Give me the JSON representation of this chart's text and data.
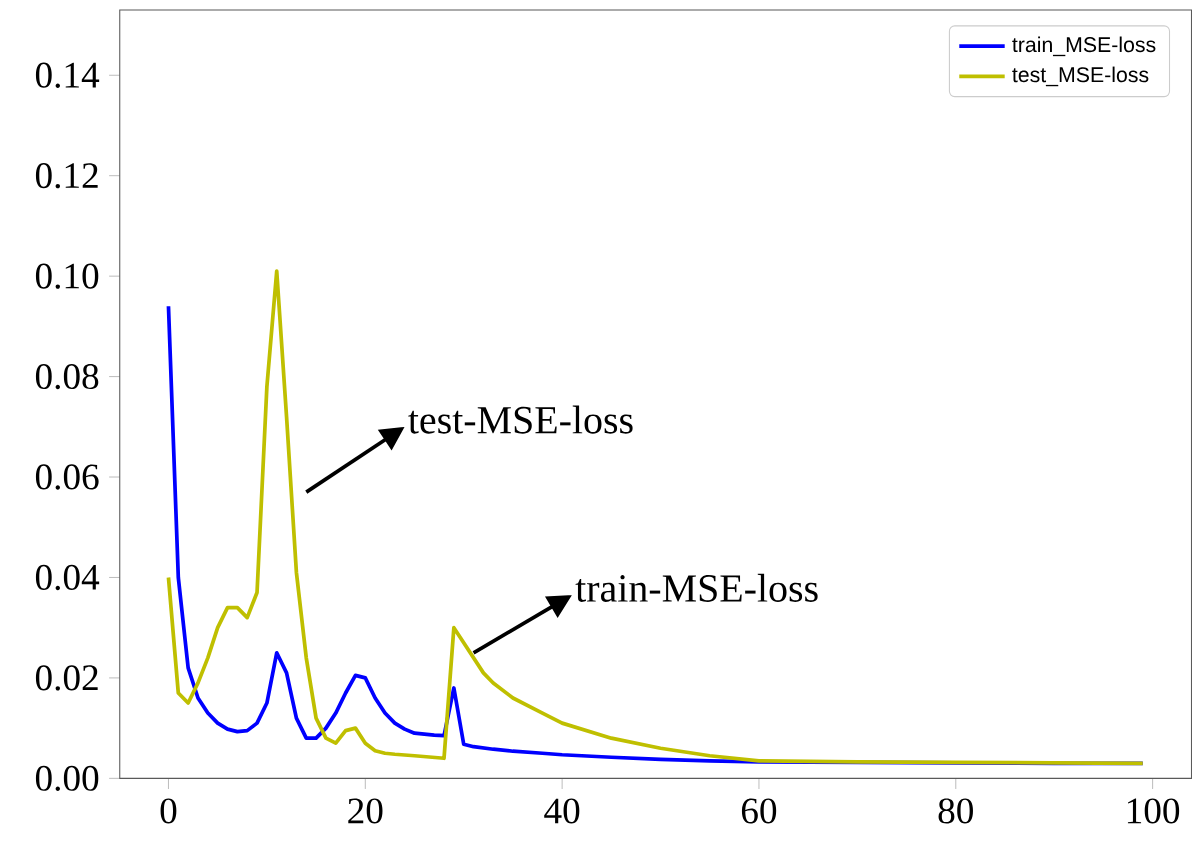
{
  "chart_data": {
    "type": "line",
    "xlim": [
      -4.95,
      103.95
    ],
    "ylim": [
      0,
      0.153
    ],
    "xticks": [
      0,
      20,
      40,
      60,
      80,
      100
    ],
    "yticks": [
      {
        "value": 0,
        "label": "0.00"
      },
      {
        "value": 0.02,
        "label": "0.02"
      },
      {
        "value": 0.04,
        "label": "0.04"
      },
      {
        "value": 0.06,
        "label": "0.06"
      },
      {
        "value": 0.08,
        "label": "0.08"
      },
      {
        "value": 0.1,
        "label": "0.10"
      },
      {
        "value": 0.12,
        "label": "0.12"
      },
      {
        "value": 0.14,
        "label": "0.14"
      }
    ],
    "legend": "top right",
    "grid": false,
    "series": [
      {
        "name": "train_MSE-loss",
        "color": "#0000ff",
        "x": [
          0,
          1,
          2,
          3,
          4,
          5,
          6,
          7,
          8,
          9,
          10,
          11,
          12,
          13,
          14,
          15,
          16,
          17,
          18,
          19,
          20,
          21,
          22,
          23,
          24,
          25,
          26,
          27,
          28,
          29,
          30,
          31,
          33,
          35,
          38,
          40,
          45,
          50,
          55,
          60,
          70,
          80,
          90,
          99
        ],
        "values": [
          0.094,
          0.04,
          0.022,
          0.016,
          0.013,
          0.011,
          0.0098,
          0.0093,
          0.0095,
          0.011,
          0.015,
          0.025,
          0.021,
          0.012,
          0.008,
          0.008,
          0.01,
          0.013,
          0.017,
          0.0205,
          0.02,
          0.016,
          0.013,
          0.011,
          0.0098,
          0.009,
          0.0088,
          0.0086,
          0.0085,
          0.018,
          0.0068,
          0.0063,
          0.0058,
          0.0054,
          0.005,
          0.0047,
          0.0042,
          0.0038,
          0.0035,
          0.0033,
          0.0032,
          0.0031,
          0.003,
          0.003
        ]
      },
      {
        "name": "test_MSE-loss",
        "color": "#bfbf00",
        "x": [
          0,
          1,
          2,
          3,
          4,
          5,
          6,
          7,
          8,
          9,
          10,
          11,
          12,
          13,
          14,
          15,
          16,
          17,
          18,
          19,
          20,
          21,
          22,
          23,
          25,
          28,
          29,
          30,
          31,
          32,
          33,
          35,
          38,
          40,
          45,
          50,
          55,
          60,
          70,
          80,
          90,
          99
        ],
        "values": [
          0.04,
          0.017,
          0.015,
          0.019,
          0.024,
          0.03,
          0.034,
          0.034,
          0.032,
          0.037,
          0.078,
          0.101,
          0.072,
          0.041,
          0.024,
          0.012,
          0.008,
          0.007,
          0.0095,
          0.01,
          0.007,
          0.0055,
          0.005,
          0.0048,
          0.0045,
          0.004,
          0.03,
          0.027,
          0.024,
          0.021,
          0.019,
          0.016,
          0.013,
          0.011,
          0.008,
          0.006,
          0.0045,
          0.0035,
          0.0033,
          0.0032,
          0.0031,
          0.003
        ]
      }
    ],
    "annotations": [
      "test-MSE-loss",
      "train-MSE-loss"
    ]
  }
}
